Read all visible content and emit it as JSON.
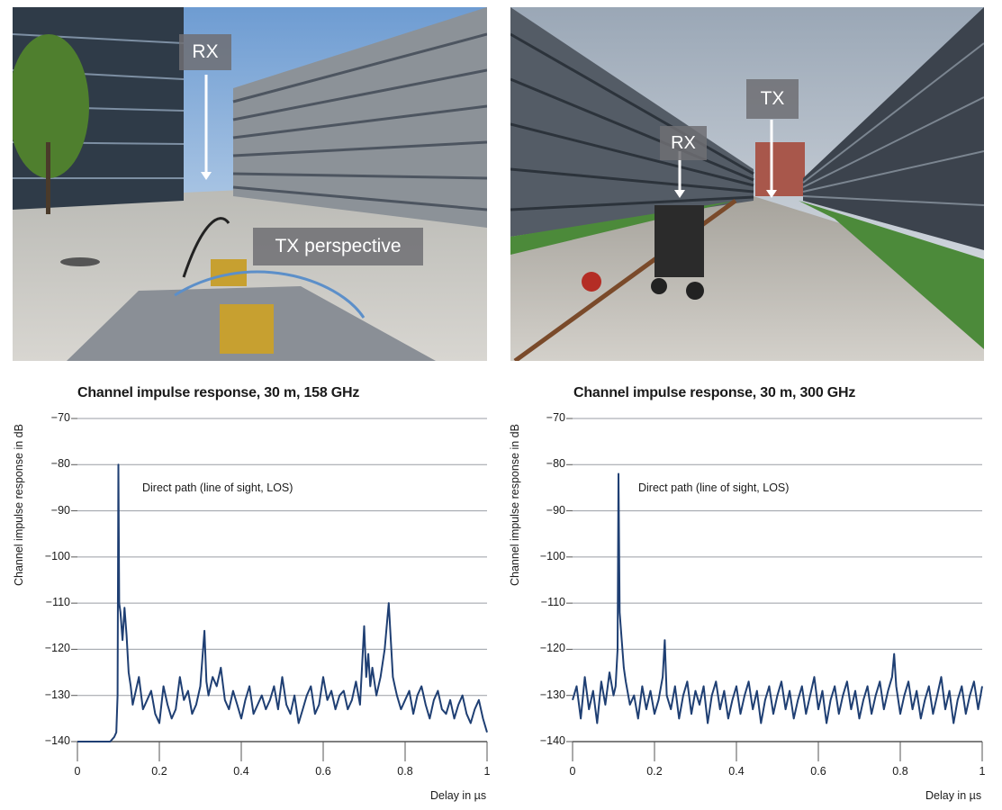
{
  "photos": [
    {
      "id": "left",
      "labels": {
        "rx": "RX",
        "tx_perspective": "TX perspective"
      }
    },
    {
      "id": "right",
      "labels": {
        "rx": "RX",
        "tx": "TX"
      }
    }
  ],
  "chart_data": [
    {
      "type": "line",
      "title": "Channel impulse response, 30 m, 158 GHz",
      "xlabel": "Delay in µs",
      "ylabel": "Channel impulse response in dB",
      "xlim": [
        0,
        1
      ],
      "ylim": [
        -140,
        -70
      ],
      "xticks": [
        "0",
        "0.2",
        "0.4",
        "0.6",
        "0.8",
        "1"
      ],
      "yticks": [
        "−70",
        "−80",
        "−90",
        "−100",
        "−110",
        "−120",
        "−130",
        "−140"
      ],
      "grid": "horizontal",
      "annotation": "Direct path (line of sight, LOS)",
      "color": "#1f3f73",
      "series": [
        {
          "x": [
            0,
            0.02,
            0.04,
            0.05,
            0.06,
            0.07,
            0.08,
            0.09,
            0.095,
            0.098,
            0.1,
            0.102,
            0.105,
            0.11,
            0.115,
            0.12,
            0.125,
            0.13,
            0.135,
            0.14,
            0.15,
            0.16,
            0.17,
            0.18,
            0.19,
            0.2,
            0.21,
            0.22,
            0.23,
            0.24,
            0.25,
            0.26,
            0.27,
            0.28,
            0.29,
            0.3,
            0.305,
            0.31,
            0.315,
            0.32,
            0.33,
            0.34,
            0.35,
            0.36,
            0.37,
            0.38,
            0.39,
            0.4,
            0.41,
            0.42,
            0.43,
            0.44,
            0.45,
            0.46,
            0.47,
            0.48,
            0.49,
            0.5,
            0.51,
            0.52,
            0.53,
            0.54,
            0.55,
            0.56,
            0.57,
            0.58,
            0.59,
            0.6,
            0.61,
            0.62,
            0.63,
            0.64,
            0.65,
            0.66,
            0.67,
            0.68,
            0.69,
            0.7,
            0.705,
            0.71,
            0.715,
            0.72,
            0.73,
            0.74,
            0.75,
            0.76,
            0.765,
            0.77,
            0.775,
            0.78,
            0.79,
            0.8,
            0.81,
            0.82,
            0.83,
            0.84,
            0.85,
            0.86,
            0.87,
            0.88,
            0.89,
            0.9,
            0.91,
            0.92,
            0.93,
            0.94,
            0.95,
            0.96,
            0.97,
            0.98,
            0.99,
            1.0
          ],
          "y": [
            -140,
            -140,
            -140,
            -140,
            -140,
            -140,
            -140,
            -139,
            -138,
            -130,
            -80,
            -110,
            -112,
            -118,
            -111,
            -117,
            -125,
            -128,
            -132,
            -130,
            -126,
            -133,
            -131,
            -129,
            -134,
            -136,
            -128,
            -132,
            -135,
            -133,
            -126,
            -131,
            -129,
            -134,
            -132,
            -128,
            -122,
            -116,
            -127,
            -130,
            -126,
            -128,
            -124,
            -131,
            -133,
            -129,
            -132,
            -135,
            -131,
            -128,
            -134,
            -132,
            -130,
            -133,
            -131,
            -128,
            -133,
            -126,
            -132,
            -134,
            -130,
            -136,
            -133,
            -130,
            -128,
            -134,
            -132,
            -126,
            -131,
            -129,
            -133,
            -130,
            -129,
            -133,
            -131,
            -127,
            -132,
            -115,
            -126,
            -121,
            -128,
            -124,
            -130,
            -126,
            -120,
            -110,
            -118,
            -126,
            -128,
            -130,
            -133,
            -131,
            -129,
            -134,
            -130,
            -128,
            -132,
            -135,
            -131,
            -129,
            -133,
            -134,
            -131,
            -135,
            -132,
            -130,
            -134,
            -136,
            -133,
            -131,
            -135,
            -138
          ]
        }
      ]
    },
    {
      "type": "line",
      "title": "Channel impulse response, 30 m, 300 GHz",
      "xlabel": "Delay in µs",
      "ylabel": "Channel impulse response in dB",
      "xlim": [
        0,
        1
      ],
      "ylim": [
        -140,
        -70
      ],
      "xticks": [
        "0",
        "0.2",
        "0.4",
        "0.6",
        "0.8",
        "1"
      ],
      "yticks": [
        "−70",
        "−80",
        "−90",
        "−100",
        "−110",
        "−120",
        "−130",
        "−140"
      ],
      "grid": "horizontal",
      "annotation": "Direct path (line of sight, LOS)",
      "color": "#1f3f73",
      "series": [
        {
          "x": [
            0,
            0.01,
            0.02,
            0.03,
            0.04,
            0.05,
            0.06,
            0.07,
            0.08,
            0.09,
            0.1,
            0.105,
            0.11,
            0.112,
            0.115,
            0.12,
            0.125,
            0.13,
            0.14,
            0.15,
            0.16,
            0.17,
            0.18,
            0.19,
            0.2,
            0.21,
            0.22,
            0.225,
            0.23,
            0.24,
            0.25,
            0.26,
            0.27,
            0.28,
            0.29,
            0.3,
            0.31,
            0.32,
            0.33,
            0.34,
            0.35,
            0.36,
            0.37,
            0.38,
            0.39,
            0.4,
            0.41,
            0.42,
            0.43,
            0.44,
            0.45,
            0.46,
            0.47,
            0.48,
            0.49,
            0.5,
            0.51,
            0.52,
            0.53,
            0.54,
            0.55,
            0.56,
            0.57,
            0.58,
            0.59,
            0.6,
            0.61,
            0.62,
            0.63,
            0.64,
            0.65,
            0.66,
            0.67,
            0.68,
            0.69,
            0.7,
            0.71,
            0.72,
            0.73,
            0.74,
            0.75,
            0.76,
            0.77,
            0.78,
            0.785,
            0.79,
            0.8,
            0.81,
            0.82,
            0.83,
            0.84,
            0.85,
            0.86,
            0.87,
            0.88,
            0.89,
            0.9,
            0.91,
            0.92,
            0.93,
            0.94,
            0.95,
            0.96,
            0.97,
            0.98,
            0.99,
            1.0
          ],
          "y": [
            -131,
            -128,
            -135,
            -126,
            -133,
            -129,
            -136,
            -127,
            -132,
            -125,
            -130,
            -128,
            -120,
            -82,
            -112,
            -118,
            -124,
            -127,
            -132,
            -130,
            -135,
            -128,
            -133,
            -129,
            -134,
            -131,
            -126,
            -118,
            -130,
            -133,
            -128,
            -135,
            -130,
            -127,
            -134,
            -129,
            -132,
            -128,
            -136,
            -130,
            -127,
            -133,
            -129,
            -135,
            -131,
            -128,
            -134,
            -130,
            -127,
            -133,
            -129,
            -136,
            -131,
            -128,
            -134,
            -130,
            -127,
            -133,
            -129,
            -135,
            -131,
            -128,
            -134,
            -130,
            -126,
            -133,
            -129,
            -136,
            -131,
            -128,
            -134,
            -130,
            -127,
            -133,
            -129,
            -135,
            -131,
            -128,
            -134,
            -130,
            -127,
            -133,
            -129,
            -126,
            -121,
            -128,
            -134,
            -130,
            -127,
            -133,
            -129,
            -135,
            -131,
            -128,
            -134,
            -130,
            -126,
            -133,
            -129,
            -136,
            -131,
            -128,
            -134,
            -130,
            -127,
            -133,
            -128
          ]
        }
      ]
    }
  ]
}
